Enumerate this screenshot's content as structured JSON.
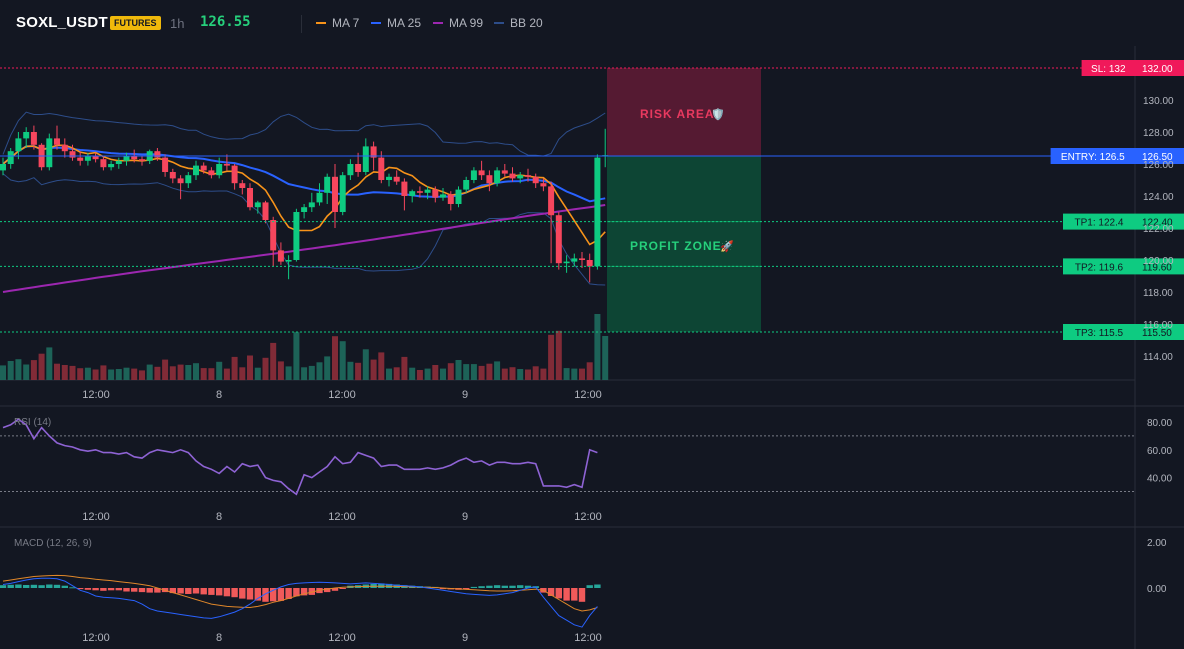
{
  "header": {
    "symbol": "SOXL_USDT",
    "badge": "FUTURES",
    "timeframe": "1h",
    "last_price": "126.55",
    "legend": [
      {
        "label": "MA 7",
        "color": "#f7931a"
      },
      {
        "label": "MA 25",
        "color": "#2962ff"
      },
      {
        "label": "MA 99",
        "color": "#9c27b0"
      },
      {
        "label": "BB 20",
        "color": "#2d4d8a"
      }
    ]
  },
  "colors": {
    "up": "#26a69a",
    "up_bright": "#0ecb81",
    "down": "#f6465d",
    "bg": "#131722"
  },
  "chart_data": [
    {
      "type": "candlestick",
      "y_ticks": [
        "130.00",
        "128.00",
        "126.00",
        "124.00",
        "122.00",
        "120.00",
        "118.00",
        "116.00",
        "114.00"
      ],
      "ylim": [
        113,
        133
      ],
      "x_ticks": [
        "12:00",
        "8",
        "12:00",
        "9",
        "12:00"
      ],
      "candles": [
        [
          125.6,
          126.4,
          125.3,
          126.0
        ],
        [
          126.0,
          127.0,
          125.7,
          126.8
        ],
        [
          126.8,
          128.0,
          126.3,
          127.6
        ],
        [
          127.6,
          128.3,
          127.0,
          128.0
        ],
        [
          128.0,
          128.4,
          126.9,
          127.2
        ],
        [
          127.2,
          127.3,
          125.6,
          125.8
        ],
        [
          125.8,
          127.9,
          125.6,
          127.6
        ],
        [
          127.6,
          128.4,
          126.9,
          127.2
        ],
        [
          127.2,
          127.6,
          126.4,
          126.8
        ],
        [
          126.8,
          127.2,
          126.2,
          126.4
        ],
        [
          126.4,
          126.8,
          125.9,
          126.2
        ],
        [
          126.2,
          126.7,
          125.9,
          126.5
        ],
        [
          126.5,
          126.7,
          126.1,
          126.3
        ],
        [
          126.3,
          126.5,
          125.6,
          125.8
        ],
        [
          125.8,
          126.2,
          125.6,
          126.0
        ],
        [
          126.0,
          126.4,
          125.7,
          126.2
        ],
        [
          126.2,
          126.7,
          125.9,
          126.5
        ],
        [
          126.5,
          126.9,
          126.1,
          126.3
        ],
        [
          126.3,
          126.5,
          125.9,
          126.2
        ],
        [
          126.2,
          126.9,
          126.0,
          126.8
        ],
        [
          126.8,
          127.0,
          126.2,
          126.4
        ],
        [
          126.4,
          126.6,
          125.2,
          125.5
        ],
        [
          125.5,
          125.7,
          124.8,
          125.1
        ],
        [
          125.1,
          125.3,
          123.8,
          124.8
        ],
        [
          124.8,
          125.5,
          124.5,
          125.3
        ],
        [
          125.3,
          126.2,
          125.0,
          125.9
        ],
        [
          125.9,
          126.1,
          125.4,
          125.6
        ],
        [
          125.6,
          125.8,
          125.1,
          125.3
        ],
        [
          125.3,
          126.4,
          125.1,
          126.0
        ],
        [
          126.0,
          126.6,
          125.6,
          125.9
        ],
        [
          125.9,
          126.0,
          124.4,
          124.8
        ],
        [
          124.8,
          125.0,
          124.1,
          124.5
        ],
        [
          124.5,
          124.8,
          123.1,
          123.3
        ],
        [
          123.3,
          123.7,
          122.9,
          123.6
        ],
        [
          123.6,
          123.7,
          122.3,
          122.5
        ],
        [
          122.5,
          122.7,
          119.6,
          120.6
        ],
        [
          120.6,
          121.1,
          119.7,
          119.9
        ],
        [
          119.9,
          120.3,
          118.8,
          120.0
        ],
        [
          120.0,
          123.2,
          119.9,
          123.0
        ],
        [
          123.0,
          123.5,
          122.6,
          123.3
        ],
        [
          123.3,
          124.2,
          123.0,
          123.6
        ],
        [
          123.6,
          124.8,
          123.4,
          124.2
        ],
        [
          124.2,
          125.4,
          123.5,
          125.2
        ],
        [
          125.2,
          126.0,
          122.0,
          123.0
        ],
        [
          123.0,
          125.5,
          122.8,
          125.3
        ],
        [
          125.3,
          126.3,
          125.0,
          126.0
        ],
        [
          126.0,
          126.7,
          125.2,
          125.5
        ],
        [
          125.5,
          127.6,
          125.3,
          127.1
        ],
        [
          127.1,
          127.4,
          125.6,
          126.4
        ],
        [
          126.4,
          126.8,
          124.8,
          125.0
        ],
        [
          125.0,
          125.4,
          124.6,
          125.2
        ],
        [
          125.2,
          125.6,
          124.7,
          124.9
        ],
        [
          124.9,
          125.1,
          123.1,
          124.0
        ],
        [
          124.0,
          124.4,
          123.6,
          124.3
        ],
        [
          124.3,
          124.6,
          123.9,
          124.2
        ],
        [
          124.2,
          124.6,
          123.8,
          124.4
        ],
        [
          124.4,
          124.6,
          123.6,
          123.9
        ],
        [
          123.9,
          124.5,
          123.7,
          124.1
        ],
        [
          124.1,
          124.3,
          123.1,
          123.5
        ],
        [
          123.5,
          124.6,
          123.3,
          124.4
        ],
        [
          124.4,
          125.2,
          124.2,
          125.0
        ],
        [
          125.0,
          125.8,
          124.8,
          125.6
        ],
        [
          125.6,
          126.2,
          125.0,
          125.3
        ],
        [
          125.3,
          125.6,
          124.3,
          124.8
        ],
        [
          124.8,
          125.8,
          124.6,
          125.6
        ],
        [
          125.6,
          126.0,
          125.2,
          125.4
        ],
        [
          125.4,
          125.8,
          124.9,
          125.1
        ],
        [
          125.1,
          125.5,
          124.8,
          125.3
        ],
        [
          125.3,
          125.7,
          124.9,
          125.2
        ],
        [
          125.2,
          125.4,
          124.5,
          124.8
        ],
        [
          124.8,
          125.1,
          124.3,
          124.6
        ],
        [
          124.6,
          124.9,
          119.8,
          122.8
        ],
        [
          122.8,
          123.0,
          119.4,
          119.8
        ],
        [
          119.8,
          120.3,
          119.2,
          119.9
        ],
        [
          119.9,
          120.4,
          119.6,
          120.1
        ],
        [
          120.1,
          120.5,
          119.5,
          120.0
        ],
        [
          120.0,
          120.4,
          118.6,
          119.6
        ],
        [
          119.6,
          126.6,
          119.4,
          126.4
        ],
        [
          126.5,
          128.2,
          125.8,
          126.55
        ]
      ],
      "overlays": {
        "ma7_desc": "MA 7",
        "ma25_desc": "MA 25",
        "ma99_desc": "MA 99",
        "bb_desc": "BB 20"
      }
    },
    {
      "type": "line",
      "y_ticks": [
        "80.00",
        "60.00",
        "40.00"
      ],
      "ylim": [
        25,
        90
      ],
      "x_ticks": [
        "12:00",
        "8",
        "12:00",
        "9",
        "12:00"
      ],
      "values": [
        76,
        78,
        82,
        78,
        68,
        76,
        70,
        65,
        63,
        62,
        60,
        59,
        60,
        58,
        58,
        57,
        58,
        55,
        54,
        58,
        60,
        59,
        58,
        60,
        58,
        52,
        48,
        46,
        43,
        48,
        44,
        50,
        48,
        49,
        40,
        38,
        37,
        32,
        28,
        42,
        40,
        44,
        48,
        55,
        50,
        51,
        58,
        56,
        54,
        48,
        49,
        49,
        46,
        46,
        46,
        47,
        46,
        47,
        49,
        52,
        54,
        51,
        52,
        49,
        51,
        51,
        50,
        50,
        51,
        50,
        34,
        34,
        34,
        33,
        35,
        33,
        60,
        58
      ]
    },
    {
      "type": "bar",
      "y_ticks": [
        "2.00",
        "0.00"
      ],
      "ylim": [
        -1.8,
        2.8
      ],
      "x_ticks": [
        "12:00",
        "8",
        "12:00",
        "9",
        "12:00"
      ],
      "values": [
        0.12,
        0.14,
        0.15,
        0.13,
        0.14,
        0.12,
        0.15,
        0.14,
        0.1,
        0.03,
        -0.05,
        -0.08,
        -0.1,
        -0.12,
        -0.1,
        -0.1,
        -0.15,
        -0.16,
        -0.18,
        -0.2,
        -0.2,
        -0.18,
        -0.22,
        -0.24,
        -0.26,
        -0.24,
        -0.28,
        -0.3,
        -0.32,
        -0.36,
        -0.4,
        -0.46,
        -0.5,
        -0.55,
        -0.6,
        -0.58,
        -0.56,
        -0.48,
        -0.36,
        -0.32,
        -0.3,
        -0.22,
        -0.18,
        -0.12,
        -0.02,
        0.1,
        0.12,
        0.15,
        0.18,
        0.2,
        0.18,
        0.15,
        0.12,
        0.1,
        0.08,
        0.06,
        0.05,
        -0.05,
        -0.06,
        -0.08,
        -0.05,
        0.05,
        0.08,
        0.1,
        0.12,
        0.1,
        0.1,
        0.12,
        0.1,
        0.08,
        -0.2,
        -0.35,
        -0.45,
        -0.55,
        -0.55,
        -0.6,
        0.12,
        0.15
      ],
      "macd_line": [
        0.15,
        0.2,
        0.28,
        0.35,
        0.4,
        0.42,
        0.42,
        0.4,
        0.3,
        0.1,
        -0.1,
        -0.2,
        -0.35,
        -0.4,
        -0.42,
        -0.45,
        -0.5,
        -0.55,
        -0.7,
        -0.9,
        -1.0,
        -1.05,
        -1.1,
        -1.15,
        -1.2,
        -1.25,
        -1.3,
        -1.32,
        -1.25,
        -1.15,
        -1.05,
        -0.9,
        -0.7,
        -0.45,
        -0.25,
        -0.1,
        0.05,
        0.15,
        0.2,
        0.22,
        0.24,
        0.25,
        0.24,
        0.22,
        0.2,
        0.18,
        0.2,
        0.22,
        0.2,
        0.18,
        0.15,
        0.12,
        0.1,
        0.08,
        0.05,
        0.0,
        -0.05,
        -0.1,
        -0.15,
        -0.2,
        -0.25,
        -0.28,
        -0.3,
        -0.32,
        -0.3,
        -0.25,
        -0.2,
        -0.1,
        0.0,
        0.05,
        -0.4,
        -0.8,
        -1.2,
        -1.4,
        -1.6,
        -1.7,
        -1.2,
        -0.8
      ],
      "signal_line": [
        0.3,
        0.35,
        0.4,
        0.45,
        0.5,
        0.52,
        0.54,
        0.55,
        0.54,
        0.5,
        0.45,
        0.42,
        0.38,
        0.35,
        0.32,
        0.28,
        0.24,
        0.2,
        0.15,
        0.1,
        0.0,
        -0.1,
        -0.2,
        -0.3,
        -0.4,
        -0.5,
        -0.6,
        -0.7,
        -0.75,
        -0.8,
        -0.82,
        -0.84,
        -0.85,
        -0.8,
        -0.72,
        -0.62,
        -0.55,
        -0.45,
        -0.35,
        -0.25,
        -0.18,
        -0.1,
        -0.05,
        0.0,
        0.03,
        0.05,
        0.06,
        0.07,
        0.08,
        0.08,
        0.08,
        0.07,
        0.06,
        0.05,
        0.04,
        0.03,
        0.02,
        0.0,
        -0.02,
        -0.04,
        -0.06,
        -0.08,
        -0.1,
        -0.12,
        -0.13,
        -0.13,
        -0.12,
        -0.1,
        -0.08,
        -0.05,
        -0.1,
        -0.3,
        -0.5,
        -0.7,
        -0.9,
        -1.0,
        -0.95,
        -0.85
      ]
    }
  ],
  "panels": {
    "rsi_label": "RSI (14)",
    "macd_label": "MACD (12, 26, 9)"
  },
  "trade": {
    "sl": {
      "label": "SL: 132",
      "price": "132.00",
      "value": 132
    },
    "entry": {
      "label": "ENTRY: 126.5",
      "price": "126.50",
      "value": 126.5
    },
    "tp1": {
      "label": "TP1: 122.4",
      "price": "122.40",
      "value": 122.4
    },
    "tp2": {
      "label": "TP2: 119.6",
      "price": "119.60",
      "value": 119.6
    },
    "tp3": {
      "label": "TP3: 115.5",
      "price": "115.50",
      "value": 115.5
    },
    "risk_label": "RISK AREA",
    "risk_icon": "🛡️",
    "profit_label": "PROFIT ZONE",
    "profit_icon": "🚀"
  }
}
